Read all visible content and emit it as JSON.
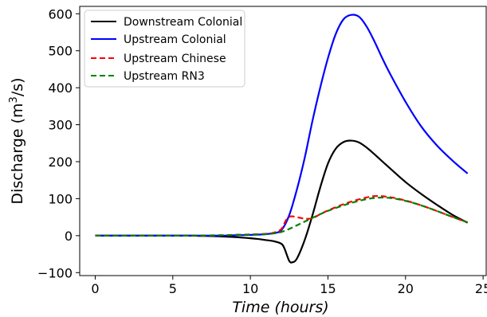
{
  "chart_data": {
    "type": "line",
    "xlabel": "Time (hours)",
    "ylabel_main": "Discharge (m",
    "ylabel_sup": "3",
    "ylabel_tail": "/s)",
    "xlim": [
      -1.0,
      25.2
    ],
    "ylim": [
      -108,
      620
    ],
    "xticks": [
      0,
      5,
      10,
      15,
      20,
      25
    ],
    "xtick_labels": [
      "0",
      "5",
      "10",
      "15",
      "20",
      "25"
    ],
    "yticks": [
      -100,
      0,
      100,
      200,
      300,
      400,
      500,
      600
    ],
    "ytick_labels": [
      "−100",
      "0",
      "100",
      "200",
      "300",
      "400",
      "500",
      "600"
    ],
    "grid": false,
    "legend_position": "top-left",
    "series": [
      {
        "name": "Downstream Colonial",
        "color": "#000000",
        "dash": "solid",
        "x": [
          0,
          2,
          4,
          6,
          8,
          9,
          10,
          10.5,
          11,
          11.5,
          12,
          12.2,
          12.5,
          12.7,
          13,
          13.5,
          14,
          14.5,
          15,
          15.5,
          16,
          16.5,
          17,
          17.5,
          18,
          19,
          20,
          21,
          22,
          23,
          24
        ],
        "y": [
          0,
          0,
          0,
          0,
          -2,
          -4,
          -7,
          -9,
          -12,
          -15,
          -22,
          -35,
          -68,
          -72,
          -62,
          -12,
          55,
          130,
          195,
          235,
          253,
          257,
          252,
          238,
          220,
          182,
          145,
          113,
          84,
          57,
          35
        ]
      },
      {
        "name": "Upstream Colonial",
        "color": "#0000ff",
        "dash": "solid",
        "x": [
          0,
          2,
          4,
          6,
          8,
          9,
          10,
          11,
          11.5,
          12,
          12.5,
          13,
          13.5,
          14,
          14.5,
          15,
          15.5,
          16,
          16.5,
          17,
          17.5,
          18,
          18.5,
          19,
          20,
          21,
          22,
          23,
          24
        ],
        "y": [
          0,
          0,
          0,
          0,
          0,
          1,
          2,
          4,
          7,
          15,
          55,
          125,
          210,
          310,
          400,
          480,
          545,
          585,
          597,
          592,
          565,
          525,
          480,
          438,
          362,
          296,
          245,
          204,
          168
        ]
      },
      {
        "name": "Upstream Chinese",
        "color": "#ff0000",
        "dash": "dashed",
        "x": [
          0,
          2,
          4,
          6,
          8,
          9,
          10,
          11,
          11.5,
          12,
          12.3,
          12.6,
          13,
          13.5,
          14,
          14.5,
          15,
          16,
          17,
          18,
          19,
          20,
          21,
          22,
          23,
          24
        ],
        "y": [
          0,
          0,
          0,
          0,
          1,
          2,
          3,
          5,
          8,
          18,
          42,
          52,
          50,
          46,
          47,
          58,
          68,
          85,
          98,
          107,
          104,
          95,
          82,
          67,
          51,
          36
        ]
      },
      {
        "name": "Upstream RN3",
        "color": "#008000",
        "dash": "dashed",
        "x": [
          0,
          2,
          4,
          6,
          8,
          9,
          10,
          11,
          11.5,
          12,
          12.5,
          13,
          13.5,
          14,
          14.5,
          15,
          16,
          17,
          18,
          19,
          20,
          21,
          22,
          23,
          24
        ],
        "y": [
          0,
          0,
          0,
          0,
          1,
          2,
          3,
          4,
          6,
          10,
          18,
          28,
          38,
          48,
          58,
          67,
          82,
          94,
          102,
          102,
          94,
          82,
          67,
          51,
          36
        ]
      }
    ]
  }
}
